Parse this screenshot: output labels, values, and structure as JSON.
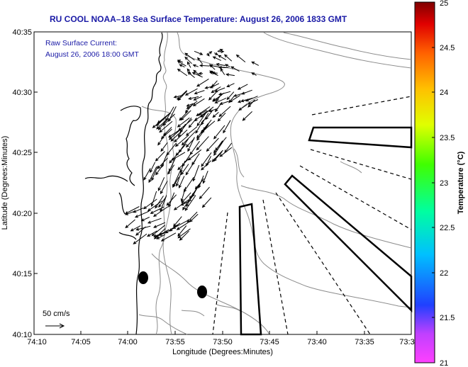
{
  "title": "RU COOL  NOAA–18  Sea Surface Temperature:  August 26, 2006 1833 GMT",
  "annotation": {
    "line1": "Raw Surface Current:",
    "line2": "August 26, 2006 18:00 GMT"
  },
  "scale_label": "50 cm/s",
  "xaxis": {
    "label": "Longitude (Degrees:Minutes)",
    "ticks": [
      "74:10",
      "74:05",
      "74:00",
      "73:55",
      "73:50",
      "73:45",
      "73:40",
      "73:35",
      "73:3"
    ]
  },
  "yaxis": {
    "label": "Latitude (Degrees:Minutes)",
    "ticks": [
      "40:35",
      "40:30",
      "40:25",
      "40:20",
      "40:15",
      "40:10"
    ]
  },
  "colorbar": {
    "label": "Temperature (°C)",
    "ticks": [
      "25",
      "24.5",
      "24",
      "23.5",
      "23",
      "22.5",
      "22",
      "21.5",
      "21"
    ],
    "colors": [
      "#ff40ff",
      "#c040ff",
      "#2040ff",
      "#00c0ff",
      "#00ffa0",
      "#40ff00",
      "#e0ff00",
      "#ffc000",
      "#ff6000",
      "#e00000",
      "#800000"
    ]
  }
}
